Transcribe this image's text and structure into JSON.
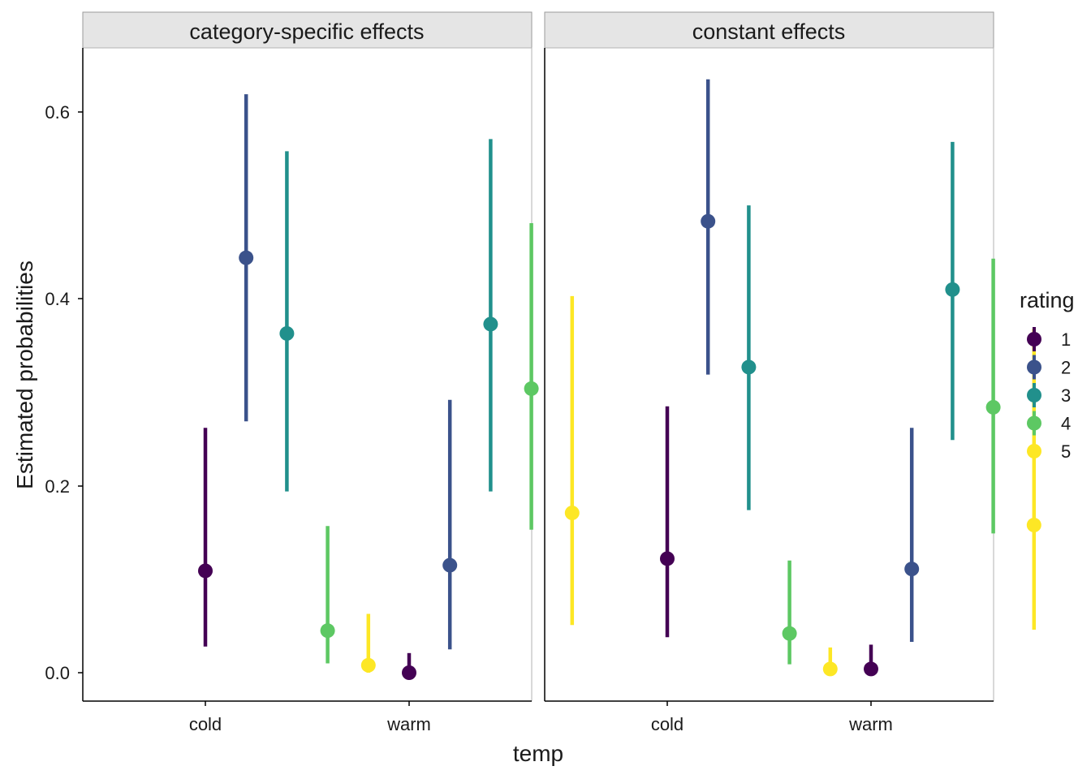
{
  "chart_data": {
    "type": "pointrange",
    "facets": [
      "category-specific effects",
      "constant effects"
    ],
    "categories": [
      "cold",
      "warm"
    ],
    "xlabel": "temp",
    "ylabel": "Estimated probabilities",
    "ylim": [
      -0.03,
      0.67
    ],
    "yticks": [
      "0.0",
      "0.2",
      "0.4",
      "0.6"
    ],
    "ytick_values": [
      0.0,
      0.2,
      0.4,
      0.6
    ],
    "legend": {
      "title": "rating",
      "position": "right",
      "levels": [
        "1",
        "2",
        "3",
        "4",
        "5"
      ]
    },
    "colors": {
      "1": "#440154",
      "2": "#3B528B",
      "3": "#21908C",
      "4": "#5DC863",
      "5": "#FDE725"
    },
    "series": [
      {
        "facet": "category-specific effects",
        "points": [
          {
            "temp": "cold",
            "rating": "1",
            "estimate": 0.109,
            "lower": 0.028,
            "upper": 0.262
          },
          {
            "temp": "cold",
            "rating": "2",
            "estimate": 0.444,
            "lower": 0.269,
            "upper": 0.619
          },
          {
            "temp": "cold",
            "rating": "3",
            "estimate": 0.363,
            "lower": 0.194,
            "upper": 0.558
          },
          {
            "temp": "cold",
            "rating": "4",
            "estimate": 0.045,
            "lower": 0.01,
            "upper": 0.157
          },
          {
            "temp": "cold",
            "rating": "5",
            "estimate": 0.008,
            "lower": 0.0,
            "upper": 0.063
          },
          {
            "temp": "warm",
            "rating": "1",
            "estimate": 0.0,
            "lower": 0.0,
            "upper": 0.021
          },
          {
            "temp": "warm",
            "rating": "2",
            "estimate": 0.115,
            "lower": 0.025,
            "upper": 0.292
          },
          {
            "temp": "warm",
            "rating": "3",
            "estimate": 0.373,
            "lower": 0.194,
            "upper": 0.571
          },
          {
            "temp": "warm",
            "rating": "4",
            "estimate": 0.304,
            "lower": 0.153,
            "upper": 0.481
          },
          {
            "temp": "warm",
            "rating": "5",
            "estimate": 0.171,
            "lower": 0.051,
            "upper": 0.403
          }
        ]
      },
      {
        "facet": "constant effects",
        "points": [
          {
            "temp": "cold",
            "rating": "1",
            "estimate": 0.122,
            "lower": 0.038,
            "upper": 0.285
          },
          {
            "temp": "cold",
            "rating": "2",
            "estimate": 0.483,
            "lower": 0.319,
            "upper": 0.635
          },
          {
            "temp": "cold",
            "rating": "3",
            "estimate": 0.327,
            "lower": 0.174,
            "upper": 0.5
          },
          {
            "temp": "cold",
            "rating": "4",
            "estimate": 0.042,
            "lower": 0.009,
            "upper": 0.12
          },
          {
            "temp": "cold",
            "rating": "5",
            "estimate": 0.004,
            "lower": 0.0,
            "upper": 0.027
          },
          {
            "temp": "warm",
            "rating": "1",
            "estimate": 0.004,
            "lower": 0.0,
            "upper": 0.03
          },
          {
            "temp": "warm",
            "rating": "2",
            "estimate": 0.111,
            "lower": 0.033,
            "upper": 0.262
          },
          {
            "temp": "warm",
            "rating": "3",
            "estimate": 0.41,
            "lower": 0.249,
            "upper": 0.568
          },
          {
            "temp": "warm",
            "rating": "4",
            "estimate": 0.284,
            "lower": 0.149,
            "upper": 0.443
          },
          {
            "temp": "warm",
            "rating": "5",
            "estimate": 0.158,
            "lower": 0.046,
            "upper": 0.368
          }
        ]
      }
    ]
  }
}
